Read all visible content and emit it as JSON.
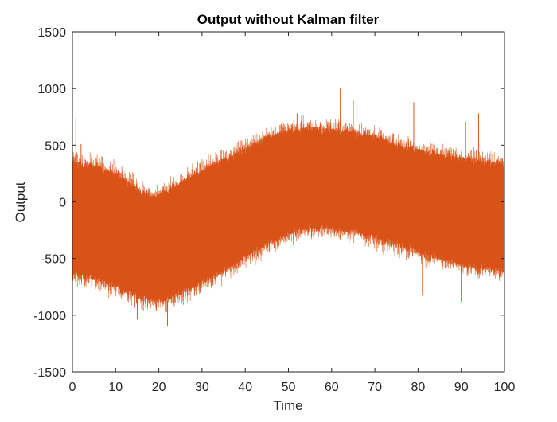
{
  "chart_data": {
    "type": "line",
    "title": "Output without Kalman filter",
    "xlabel": "Time",
    "ylabel": "Output",
    "xlim": [
      0,
      100
    ],
    "ylim": [
      -1500,
      1500
    ],
    "xticks": [
      0,
      10,
      20,
      30,
      40,
      50,
      60,
      70,
      80,
      90,
      100
    ],
    "yticks": [
      -1500,
      -1000,
      -500,
      0,
      500,
      1000,
      1500
    ],
    "xtick_labels": [
      "0",
      "10",
      "20",
      "30",
      "40",
      "50",
      "60",
      "70",
      "80",
      "90",
      "100"
    ],
    "ytick_labels": [
      "-1500",
      "-1000",
      "-500",
      "0",
      "500",
      "1000",
      "1500"
    ],
    "grid": false,
    "legend": null,
    "series": [
      {
        "color": "#D95319",
        "envelope_x": [
          0,
          5,
          10,
          15,
          18,
          20,
          22,
          25,
          30,
          35,
          40,
          45,
          50,
          55,
          60,
          65,
          70,
          75,
          80,
          85,
          90,
          95,
          100
        ],
        "envelope_upper": [
          350,
          330,
          250,
          120,
          50,
          60,
          110,
          170,
          280,
          380,
          470,
          580,
          630,
          660,
          640,
          620,
          580,
          510,
          460,
          420,
          390,
          360,
          340
        ],
        "envelope_lower": [
          -650,
          -680,
          -760,
          -840,
          -870,
          -880,
          -870,
          -820,
          -720,
          -620,
          -490,
          -380,
          -290,
          -230,
          -240,
          -270,
          -320,
          -390,
          -450,
          -510,
          -560,
          -590,
          -610
        ],
        "spikes": [
          {
            "x": 0.8,
            "y": 740
          },
          {
            "x": 2.0,
            "y": 510
          },
          {
            "x": 18.0,
            "y": 110
          },
          {
            "x": 22.0,
            "y": -1100
          },
          {
            "x": 15.0,
            "y": -1040
          },
          {
            "x": 46.0,
            "y": 660
          },
          {
            "x": 52.0,
            "y": 780
          },
          {
            "x": 62.0,
            "y": 1000
          },
          {
            "x": 65.0,
            "y": 900
          },
          {
            "x": 79.0,
            "y": 880
          },
          {
            "x": 91.0,
            "y": 710
          },
          {
            "x": 94.0,
            "y": 780
          },
          {
            "x": 81.0,
            "y": -820
          },
          {
            "x": 90.0,
            "y": -880
          },
          {
            "x": 99.0,
            "y": -660
          }
        ]
      }
    ]
  }
}
